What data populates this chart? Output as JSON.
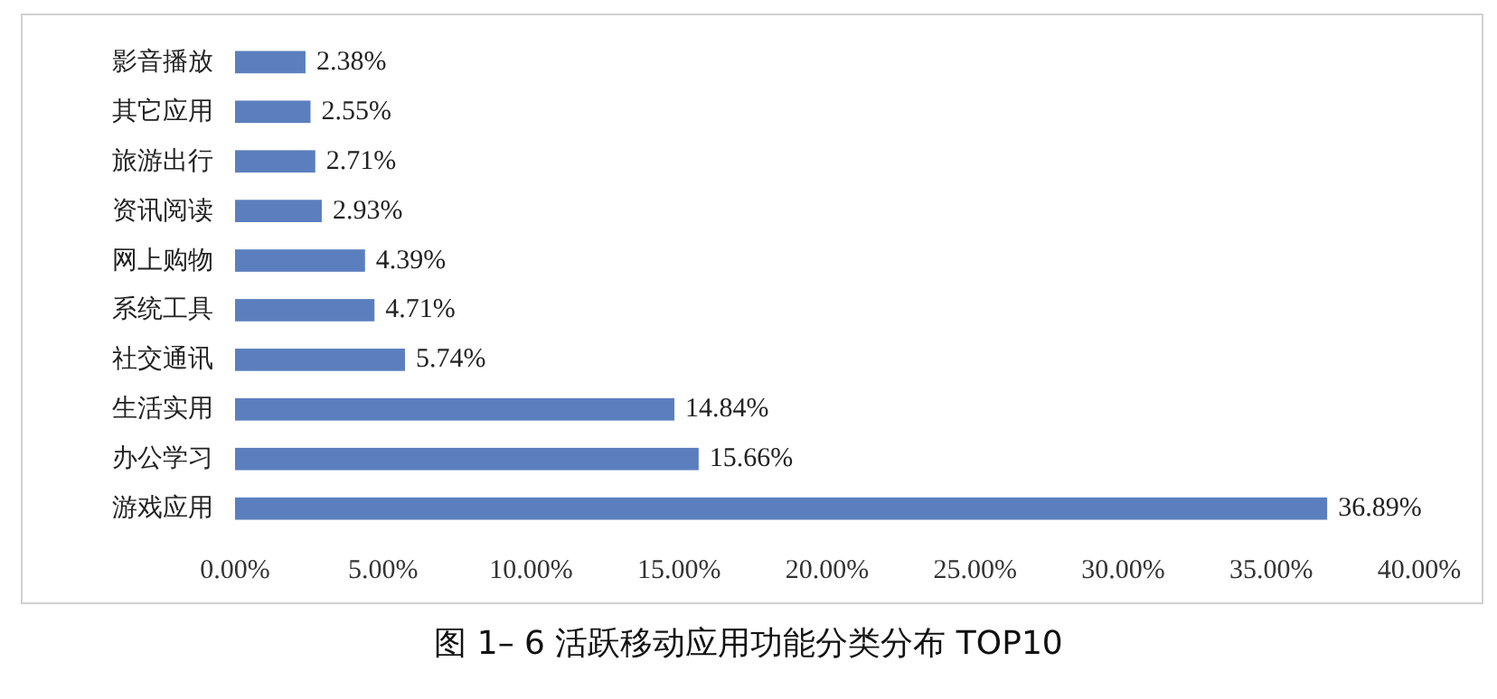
{
  "chart_data": {
    "type": "bar",
    "orientation": "horizontal",
    "title": "图 1– 6 活跃移动应用功能分类分布 TOP10",
    "categories": [
      "影音播放",
      "其它应用",
      "旅游出行",
      "资讯阅读",
      "网上购物",
      "系统工具",
      "社交通讯",
      "生活实用",
      "办公学习",
      "游戏应用"
    ],
    "values": [
      2.38,
      2.55,
      2.71,
      2.93,
      4.39,
      4.71,
      5.74,
      14.84,
      15.66,
      36.89
    ],
    "value_labels": [
      "2.38%",
      "2.55%",
      "2.71%",
      "2.93%",
      "4.39%",
      "4.71%",
      "5.74%",
      "14.84%",
      "15.66%",
      "36.89%"
    ],
    "color": "#5b7fbe",
    "xlim": [
      0,
      40
    ],
    "xticks": [
      {
        "value": 0,
        "label": "0.00%"
      },
      {
        "value": 5,
        "label": "5.00%"
      },
      {
        "value": 10,
        "label": "10.00%"
      },
      {
        "value": 15,
        "label": "15.00%"
      },
      {
        "value": 20,
        "label": "20.00%"
      },
      {
        "value": 25,
        "label": "25.00%"
      },
      {
        "value": 30,
        "label": "30.00%"
      },
      {
        "value": 35,
        "label": "35.00%"
      },
      {
        "value": 40,
        "label": "40.00%"
      }
    ],
    "grid": false
  }
}
